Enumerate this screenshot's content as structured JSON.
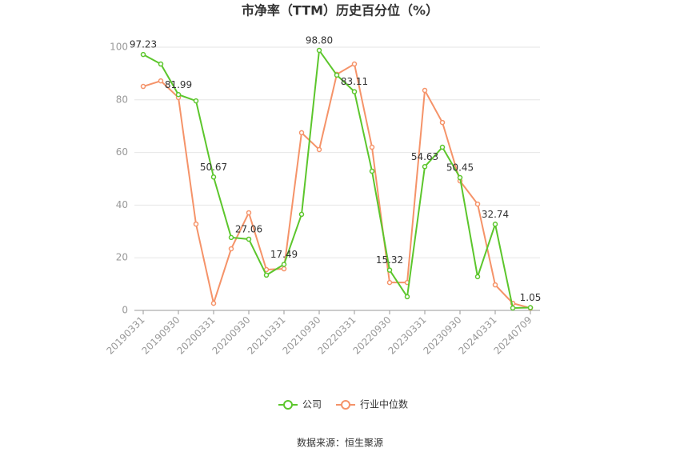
{
  "chart_data": {
    "type": "line",
    "title": "市净率（TTM）历史百分位（%）",
    "categories": [
      "20190331",
      null,
      "20190930",
      null,
      "20200331",
      null,
      "20200930",
      null,
      "20210331",
      null,
      "20210930",
      null,
      "20220331",
      null,
      "20220930",
      null,
      "20230331",
      null,
      "20230930",
      null,
      "20240331",
      null,
      "20240709"
    ],
    "series": [
      {
        "name": "公司",
        "color": "#5cc62c",
        "values": [
          97.23,
          93.6,
          81.99,
          79.6,
          50.67,
          27.7,
          27.06,
          13.4,
          17.49,
          36.5,
          98.8,
          89.4,
          83.11,
          52.9,
          15.32,
          5.2,
          54.63,
          62.0,
          50.45,
          12.8,
          32.74,
          0.9,
          1.05
        ],
        "value_labels": [
          "97.23",
          null,
          "81.99",
          null,
          "50.67",
          null,
          "27.06",
          null,
          "17.49",
          null,
          "98.80",
          null,
          "83.11",
          null,
          "15.32",
          null,
          "54.63",
          null,
          "50.45",
          null,
          "32.74",
          null,
          "1.05"
        ]
      },
      {
        "name": "行业中位数",
        "color": "#f59369",
        "values": [
          85.1,
          87.2,
          80.9,
          32.8,
          2.7,
          23.4,
          37.1,
          15.5,
          15.8,
          67.5,
          61.1,
          89.7,
          93.6,
          62.0,
          10.6,
          10.6,
          83.6,
          71.4,
          49.2,
          40.4,
          9.7,
          2.7,
          0.9
        ]
      }
    ],
    "ylim": [
      0,
      100
    ],
    "yticks": [
      0,
      20,
      40,
      60,
      80,
      100
    ],
    "grid": true,
    "legend": "bottom",
    "source": "数据来源：恒生聚源"
  }
}
